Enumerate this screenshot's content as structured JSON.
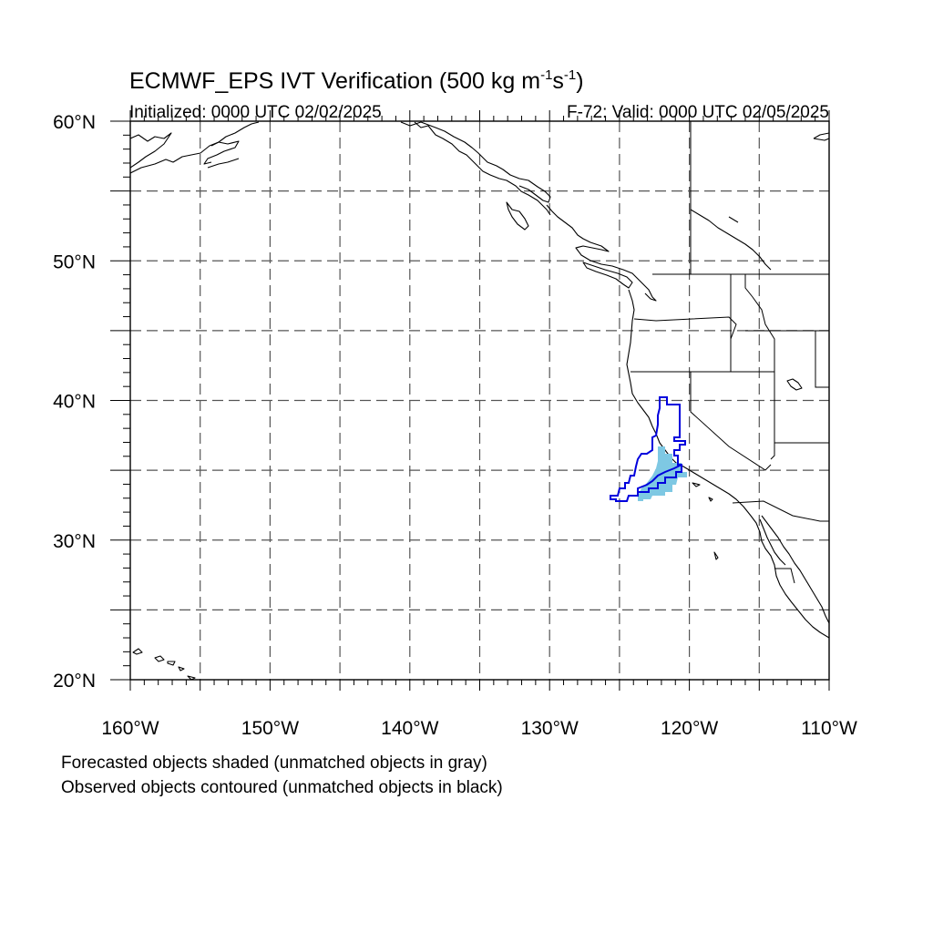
{
  "title": {
    "main": "ECMWF_EPS IVT Verification (500 kg m",
    "sup1": "-1",
    "mid": "s",
    "sup2": "-1",
    "end": ")"
  },
  "initialized": "Initialized: 0000 UTC 02/02/2025",
  "valid": "F-72: Valid: 0000 UTC 02/05/2025",
  "lat_ticks": [
    {
      "label": "60°N",
      "value": 60
    },
    {
      "label": "50°N",
      "value": 50
    },
    {
      "label": "40°N",
      "value": 40
    },
    {
      "label": "30°N",
      "value": 30
    },
    {
      "label": "20°N",
      "value": 20
    }
  ],
  "lon_ticks": [
    {
      "label": "160°W",
      "value": -160
    },
    {
      "label": "150°W",
      "value": -150
    },
    {
      "label": "140°W",
      "value": -140
    },
    {
      "label": "130°W",
      "value": -130
    },
    {
      "label": "120°W",
      "value": -120
    },
    {
      "label": "110°W",
      "value": -110
    }
  ],
  "extent": {
    "lon": [
      -160,
      -110
    ],
    "lat": [
      20,
      60
    ]
  },
  "footnotes": [
    "Forecasted objects shaded (unmatched objects in gray)",
    "Observed objects contoured (unmatched objects in black)"
  ],
  "colors": {
    "forecast_fill": "#7ec8e3",
    "observed_contour": "#0000dd",
    "coastline": "#000000",
    "grid": "#555555"
  }
}
